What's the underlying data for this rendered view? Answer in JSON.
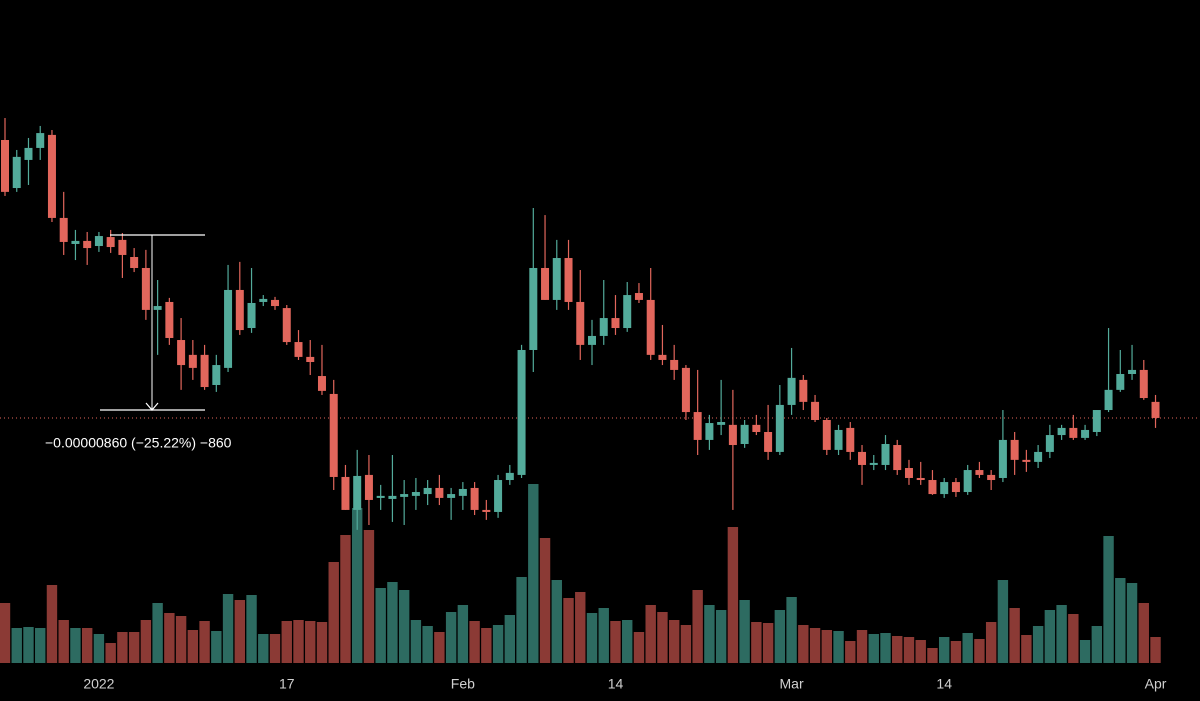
{
  "chart_data": {
    "type": "candlestick",
    "categories": [
      null,
      null,
      null,
      null,
      null,
      null,
      null,
      null,
      "2022",
      null,
      null,
      null,
      null,
      null,
      null,
      null,
      null,
      null,
      null,
      null,
      null,
      null,
      null,
      null,
      "17",
      null,
      null,
      null,
      null,
      null,
      null,
      null,
      null,
      null,
      null,
      null,
      null,
      null,
      null,
      "Feb",
      null,
      null,
      null,
      null,
      null,
      null,
      null,
      null,
      null,
      null,
      null,
      null,
      "14",
      null,
      null,
      null,
      null,
      null,
      null,
      null,
      null,
      null,
      null,
      null,
      null,
      null,
      null,
      "Mar",
      null,
      null,
      null,
      null,
      null,
      null,
      null,
      null,
      null,
      null,
      null,
      null,
      "14",
      null,
      null,
      null,
      null,
      null,
      null,
      null,
      null,
      null,
      null,
      null,
      null,
      null,
      null,
      null,
      null,
      null,
      "Apr"
    ],
    "open": [
      3.877e-05,
      3.641e-05,
      3.779e-05,
      3.838e-05,
      3.902e-05,
      3.494e-05,
      3.366e-05,
      3.381e-05,
      3.356e-05,
      3.4e-05,
      3.386e-05,
      3.302e-05,
      3.248e-05,
      3.042e-05,
      3.081e-05,
      2.894e-05,
      2.821e-05,
      2.821e-05,
      2.673e-05,
      2.757e-05,
      3.14e-05,
      2.953e-05,
      3.081e-05,
      3.091e-05,
      3.051e-05,
      2.884e-05,
      2.811e-05,
      2.717e-05,
      2.629e-05,
      2.221e-05,
      2.059e-05,
      2.231e-05,
      2.118e-05,
      2.113e-05,
      2.123e-05,
      2.128e-05,
      2.137e-05,
      2.167e-05,
      2.118e-05,
      2.128e-05,
      2.167e-05,
      2.059e-05,
      2.049e-05,
      2.206e-05,
      2.231e-05,
      2.845e-05,
      3.248e-05,
      3.091e-05,
      3.297e-05,
      3.081e-05,
      2.87e-05,
      2.914e-05,
      3.002e-05,
      2.953e-05,
      3.125e-05,
      3.091e-05,
      2.821e-05,
      2.796e-05,
      2.757e-05,
      2.54e-05,
      2.403e-05,
      2.477e-05,
      2.477e-05,
      2.383e-05,
      2.477e-05,
      2.442e-05,
      2.344e-05,
      2.575e-05,
      2.698e-05,
      2.59e-05,
      2.501e-05,
      2.354e-05,
      2.462e-05,
      2.344e-05,
      2.28e-05,
      2.28e-05,
      2.378e-05,
      2.265e-05,
      2.216e-05,
      2.206e-05,
      2.137e-05,
      2.196e-05,
      2.147e-05,
      2.255e-05,
      2.231e-05,
      2.216e-05,
      2.403e-05,
      2.305e-05,
      2.295e-05,
      2.344e-05,
      2.427e-05,
      2.462e-05,
      2.413e-05,
      2.442e-05,
      2.55e-05,
      2.649e-05,
      2.727e-05,
      2.747e-05,
      2.59e-05
    ],
    "high": [
      3.985e-05,
      3.828e-05,
      3.887e-05,
      3.946e-05,
      3.926e-05,
      3.622e-05,
      3.435e-05,
      3.425e-05,
      3.425e-05,
      3.435e-05,
      3.42e-05,
      3.346e-05,
      3.337e-05,
      3.189e-05,
      3.101e-05,
      3.002e-05,
      2.894e-05,
      2.87e-05,
      2.821e-05,
      3.263e-05,
      3.278e-05,
      3.248e-05,
      3.115e-05,
      3.106e-05,
      3.066e-05,
      2.943e-05,
      2.894e-05,
      2.87e-05,
      2.698e-05,
      2.28e-05,
      2.354e-05,
      2.329e-05,
      2.182e-05,
      2.329e-05,
      2.206e-05,
      2.216e-05,
      2.206e-05,
      2.231e-05,
      2.167e-05,
      2.196e-05,
      2.196e-05,
      2.108e-05,
      2.231e-05,
      2.28e-05,
      2.87e-05,
      3.543e-05,
      3.508e-05,
      3.386e-05,
      3.386e-05,
      3.238e-05,
      2.993e-05,
      3.189e-05,
      3.115e-05,
      3.179e-05,
      3.174e-05,
      3.248e-05,
      2.968e-05,
      2.87e-05,
      2.771e-05,
      2.747e-05,
      2.526e-05,
      2.698e-05,
      2.649e-05,
      2.501e-05,
      2.526e-05,
      2.575e-05,
      2.673e-05,
      2.855e-05,
      2.722e-05,
      2.624e-05,
      2.511e-05,
      2.477e-05,
      2.491e-05,
      2.378e-05,
      2.329e-05,
      2.427e-05,
      2.403e-05,
      2.305e-05,
      2.295e-05,
      2.255e-05,
      2.216e-05,
      2.216e-05,
      2.28e-05,
      2.295e-05,
      2.255e-05,
      2.55e-05,
      2.442e-05,
      2.354e-05,
      2.378e-05,
      2.477e-05,
      2.477e-05,
      2.526e-05,
      2.477e-05,
      2.55e-05,
      2.953e-05,
      2.845e-05,
      2.87e-05,
      2.796e-05,
      2.624e-05
    ],
    "low": [
      3.602e-05,
      3.622e-05,
      3.656e-05,
      3.779e-05,
      3.474e-05,
      3.312e-05,
      3.287e-05,
      3.263e-05,
      3.327e-05,
      3.322e-05,
      3.199e-05,
      3.228e-05,
      2.993e-05,
      2.821e-05,
      2.87e-05,
      2.649e-05,
      2.698e-05,
      2.649e-05,
      2.639e-05,
      2.737e-05,
      2.919e-05,
      2.929e-05,
      3.061e-05,
      3.042e-05,
      2.87e-05,
      2.796e-05,
      2.722e-05,
      2.624e-05,
      2.157e-05,
      2.059e-05,
      1.961e-05,
      1.985e-05,
      2.059e-05,
      2e-05,
      1.985e-05,
      2.059e-05,
      2.083e-05,
      2.083e-05,
      2.01e-05,
      2.059e-05,
      2.034e-05,
      2.01e-05,
      2.02e-05,
      2.182e-05,
      2.216e-05,
      2.737e-05,
      3.091e-05,
      3.042e-05,
      3.042e-05,
      2.796e-05,
      2.771e-05,
      2.87e-05,
      2.919e-05,
      2.934e-05,
      3.076e-05,
      2.796e-05,
      2.771e-05,
      2.698e-05,
      2.501e-05,
      2.329e-05,
      2.354e-05,
      2.427e-05,
      2.059e-05,
      2.364e-05,
      2.427e-05,
      2.305e-05,
      2.329e-05,
      2.526e-05,
      2.55e-05,
      2.491e-05,
      2.329e-05,
      2.329e-05,
      2.305e-05,
      2.182e-05,
      2.255e-05,
      2.255e-05,
      2.231e-05,
      2.182e-05,
      2.182e-05,
      2.133e-05,
      2.118e-05,
      2.123e-05,
      2.133e-05,
      2.216e-05,
      2.157e-05,
      2.196e-05,
      2.231e-05,
      2.246e-05,
      2.265e-05,
      2.314e-05,
      2.403e-05,
      2.403e-05,
      2.403e-05,
      2.422e-05,
      2.54e-05,
      2.639e-05,
      2.698e-05,
      2.6e-05,
      2.462e-05
    ],
    "close": [
      3.622e-05,
      3.794e-05,
      3.838e-05,
      3.911e-05,
      3.494e-05,
      3.376e-05,
      3.381e-05,
      3.346e-05,
      3.405e-05,
      3.351e-05,
      3.312e-05,
      3.248e-05,
      3.042e-05,
      3.061e-05,
      2.904e-05,
      2.771e-05,
      2.757e-05,
      2.663e-05,
      2.771e-05,
      3.14e-05,
      2.943e-05,
      3.076e-05,
      3.096e-05,
      3.061e-05,
      2.884e-05,
      2.811e-05,
      2.786e-05,
      2.644e-05,
      2.221e-05,
      2.059e-05,
      2.226e-05,
      2.108e-05,
      2.128e-05,
      2.128e-05,
      2.137e-05,
      2.147e-05,
      2.167e-05,
      2.118e-05,
      2.137e-05,
      2.162e-05,
      2.059e-05,
      2.049e-05,
      2.206e-05,
      2.241e-05,
      2.845e-05,
      3.248e-05,
      3.091e-05,
      3.297e-05,
      3.081e-05,
      2.87e-05,
      2.914e-05,
      3.002e-05,
      2.953e-05,
      3.115e-05,
      3.091e-05,
      2.821e-05,
      2.796e-05,
      2.747e-05,
      2.54e-05,
      2.403e-05,
      2.486e-05,
      2.491e-05,
      2.378e-05,
      2.477e-05,
      2.442e-05,
      2.344e-05,
      2.575e-05,
      2.708e-05,
      2.59e-05,
      2.501e-05,
      2.354e-05,
      2.452e-05,
      2.344e-05,
      2.28e-05,
      2.29e-05,
      2.383e-05,
      2.255e-05,
      2.216e-05,
      2.206e-05,
      2.137e-05,
      2.196e-05,
      2.147e-05,
      2.255e-05,
      2.231e-05,
      2.206e-05,
      2.403e-05,
      2.305e-05,
      2.295e-05,
      2.344e-05,
      2.427e-05,
      2.462e-05,
      2.413e-05,
      2.452e-05,
      2.55e-05,
      2.649e-05,
      2.727e-05,
      2.747e-05,
      2.609e-05,
      2.511e-05
    ],
    "volume": [
      60,
      35,
      36,
      35,
      78,
      43,
      35,
      35,
      29,
      20,
      31,
      31,
      43,
      60,
      50,
      47,
      33,
      42,
      32,
      69,
      63,
      68,
      29,
      29,
      42,
      43,
      42,
      41,
      101,
      128,
      155,
      133,
      75,
      81,
      73,
      43,
      37,
      31,
      51,
      58,
      42,
      35,
      38,
      48,
      86,
      179,
      125,
      83,
      65,
      71,
      50,
      55,
      42,
      43,
      31,
      58,
      51,
      43,
      38,
      73,
      58,
      53,
      136,
      63,
      41,
      40,
      53,
      66,
      38,
      35,
      33,
      32,
      22,
      33,
      29,
      30,
      27,
      26,
      23,
      15,
      26,
      22,
      30,
      24,
      41,
      83,
      55,
      28,
      37,
      53,
      58,
      49,
      23,
      37,
      127,
      85,
      80,
      60,
      26
    ],
    "ylim": [
      1.12e-05,
      4.565e-05
    ],
    "volume_lim": [
      0,
      400
    ],
    "up_color": "#53ab9b",
    "down_color": "#e2665c",
    "up_volume_color": "#2d6b61",
    "down_volume_color": "#8b3a35",
    "measure": {
      "from": 3.41e-05,
      "to": 2.55e-05,
      "label": "−0.00000860 (−25.22%) −860"
    }
  }
}
